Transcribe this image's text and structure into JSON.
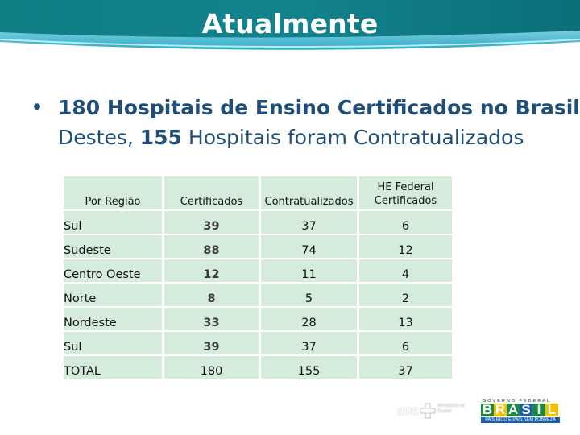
{
  "slide": {
    "title": "Atualmente",
    "bullet_line1": "180 Hospitais de Ensino Certificados no Brasil",
    "bullet_line2_prefix": "Destes,",
    "bullet_line2_number": "155",
    "bullet_line2_suffix": "Hospitais foram Contratualizados"
  },
  "table": {
    "headers": [
      "Por Região",
      "Certificados",
      "Contratualizados",
      "HE Federal Certificados"
    ],
    "rows": [
      [
        "Sul",
        "39",
        "37",
        "6"
      ],
      [
        "Sudeste",
        "88",
        "74",
        "12"
      ],
      [
        "Centro Oeste",
        "12",
        "11",
        "4"
      ],
      [
        "Norte",
        "8",
        "5",
        "2"
      ],
      [
        "Nordeste",
        "33",
        "28",
        "13"
      ],
      [
        "Sul",
        "39",
        "37",
        "6"
      ],
      [
        "TOTAL",
        "180",
        "155",
        "37"
      ]
    ]
  },
  "footer": {
    "sus_label": "SUS",
    "ministerio_label": "Ministério da Saúde",
    "governo_label": "GOVERNO FEDERAL",
    "brasil_letters": [
      "B",
      "R",
      "A",
      "S",
      "I",
      "L"
    ],
    "brasil_colors": [
      "#1b8a3e",
      "#f2c200",
      "#1b8a3e",
      "#1a5fa8",
      "#1b8a3e",
      "#f2c200"
    ],
    "pais_label": "PAÍS RICO É PAÍS SEM POBREZA"
  },
  "colors": {
    "header_dark": "#0c7a84",
    "header_light": "#7fd3e6",
    "text_blue": "#1f4e79",
    "table_fill": "#d5ecdd"
  }
}
